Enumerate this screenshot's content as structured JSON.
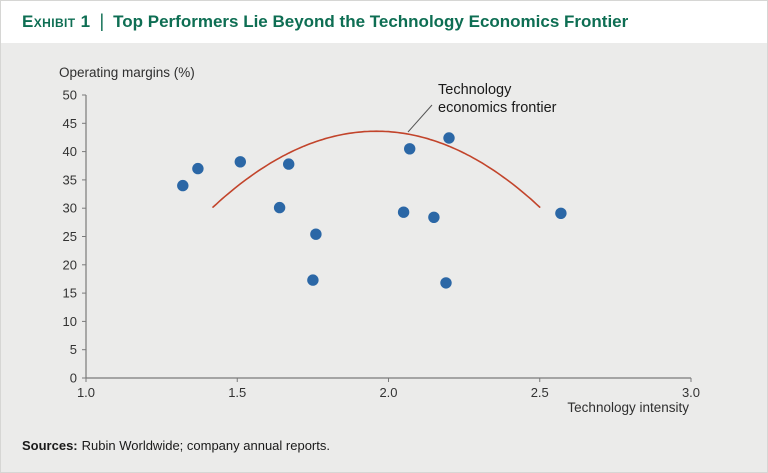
{
  "header": {
    "exhibit_label": "Exhibit 1",
    "divider": "|",
    "title": "Top Performers Lie Beyond the Technology Economics Frontier"
  },
  "chart_data": {
    "type": "scatter",
    "title": "",
    "xlabel": "Technology intensity",
    "ylabel": "Operating margins (%)",
    "xlim": [
      1.0,
      3.0
    ],
    "ylim": [
      0,
      50
    ],
    "x_ticks": [
      1.0,
      1.5,
      2.0,
      2.5,
      3.0
    ],
    "x_tick_labels": [
      "1.0",
      "1.5",
      "2.0",
      "2.5",
      "3.0"
    ],
    "y_ticks": [
      0,
      5,
      10,
      15,
      20,
      25,
      30,
      35,
      40,
      45,
      50
    ],
    "grid": false,
    "points": [
      [
        1.32,
        34.0
      ],
      [
        1.37,
        37.0
      ],
      [
        1.51,
        38.2
      ],
      [
        1.64,
        30.1
      ],
      [
        1.67,
        37.8
      ],
      [
        1.75,
        17.3
      ],
      [
        1.76,
        25.4
      ],
      [
        2.05,
        29.3
      ],
      [
        2.07,
        40.5
      ],
      [
        2.15,
        28.4
      ],
      [
        2.19,
        16.8
      ],
      [
        2.2,
        42.4
      ],
      [
        2.57,
        29.1
      ]
    ],
    "frontier_curve": {
      "label": "Technology economics frontier",
      "shape": "parabola",
      "x_start": 1.42,
      "x_end": 2.5,
      "peak_x": 1.96,
      "peak_y": 43.6,
      "curvature": 46
    },
    "annotation": {
      "line1": "Technology",
      "line2": "economics frontier"
    },
    "colors": {
      "point": "#2b67a6",
      "frontier": "#c2442b",
      "axis": "#7a7a7a",
      "tick_text": "#333333",
      "leader": "#555555"
    }
  },
  "footer": {
    "sources_label": "Sources:",
    "sources_text": "Rubin Worldwide; company annual reports."
  }
}
